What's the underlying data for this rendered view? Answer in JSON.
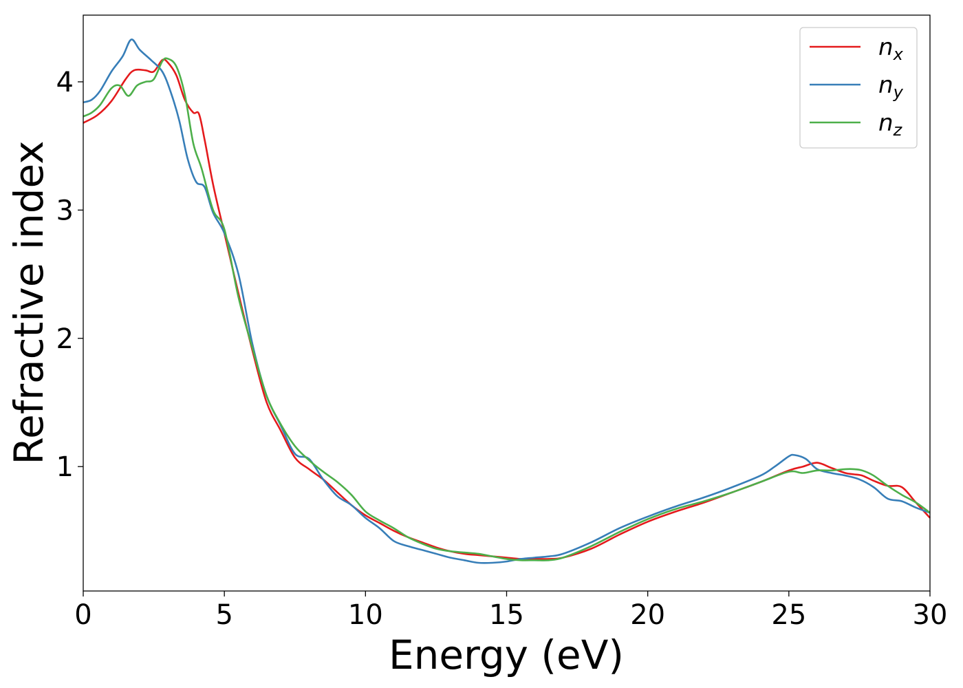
{
  "chart_data": {
    "type": "line",
    "xlabel": "Energy (eV)",
    "ylabel": "Refractive index",
    "xlim": [
      0,
      30
    ],
    "ylim": [
      0.03,
      4.52
    ],
    "xticks": [
      0,
      5,
      10,
      15,
      20,
      25,
      30
    ],
    "xtick_labels": [
      "0",
      "5",
      "10",
      "15",
      "20",
      "25",
      "30"
    ],
    "yticks": [
      1,
      2,
      3,
      4
    ],
    "ytick_labels": [
      "1",
      "2",
      "3",
      "4"
    ],
    "grid": false,
    "legend_position": "top-right",
    "series": [
      {
        "name": "n",
        "subscript": "x",
        "color": "#e41a1c",
        "x": [
          0,
          0.5,
          1,
          1.5,
          1.8,
          2.2,
          2.5,
          2.8,
          3.0,
          3.3,
          3.6,
          3.9,
          4.1,
          4.3,
          4.6,
          5,
          5.5,
          6,
          6.5,
          7,
          7.5,
          8,
          8.5,
          9,
          9.5,
          10,
          10.5,
          11,
          11.5,
          12,
          12.5,
          13,
          13.5,
          14,
          14.5,
          15,
          15.5,
          16,
          16.5,
          17,
          18,
          19,
          20,
          21,
          22,
          23,
          24,
          25,
          25.5,
          26,
          26.5,
          27,
          27.3,
          27.6,
          28,
          28.5,
          29,
          29.5,
          30
        ],
        "values": [
          3.68,
          3.74,
          3.85,
          4.02,
          4.09,
          4.09,
          4.08,
          4.17,
          4.15,
          4.05,
          3.86,
          3.76,
          3.75,
          3.55,
          3.2,
          2.82,
          2.35,
          1.9,
          1.5,
          1.28,
          1.07,
          0.98,
          0.9,
          0.8,
          0.7,
          0.62,
          0.56,
          0.5,
          0.45,
          0.41,
          0.37,
          0.34,
          0.32,
          0.31,
          0.3,
          0.29,
          0.28,
          0.28,
          0.28,
          0.29,
          0.36,
          0.47,
          0.57,
          0.65,
          0.72,
          0.8,
          0.88,
          0.97,
          1.0,
          1.03,
          0.99,
          0.95,
          0.94,
          0.93,
          0.89,
          0.85,
          0.84,
          0.72,
          0.6
        ]
      },
      {
        "name": "n",
        "subscript": "y",
        "color": "#377eb8",
        "x": [
          0,
          0.3,
          0.6,
          1,
          1.4,
          1.7,
          2.0,
          2.4,
          2.8,
          3.1,
          3.4,
          3.7,
          4.0,
          4.3,
          4.6,
          5,
          5.5,
          6,
          6.5,
          7,
          7.5,
          8,
          8.5,
          9,
          9.5,
          10,
          10.5,
          11,
          11.5,
          12,
          12.5,
          13,
          13.5,
          14,
          14.5,
          15,
          15.5,
          16,
          16.5,
          17,
          18,
          19,
          20,
          21,
          22,
          23,
          24,
          24.5,
          25,
          25.2,
          25.6,
          26,
          26.5,
          27,
          27.5,
          28,
          28.5,
          29,
          29.5,
          30
        ],
        "values": [
          3.84,
          3.86,
          3.93,
          4.08,
          4.2,
          4.33,
          4.25,
          4.17,
          4.08,
          3.92,
          3.7,
          3.4,
          3.22,
          3.18,
          2.98,
          2.82,
          2.5,
          1.95,
          1.55,
          1.32,
          1.1,
          1.06,
          0.9,
          0.77,
          0.7,
          0.6,
          0.52,
          0.42,
          0.38,
          0.35,
          0.32,
          0.29,
          0.27,
          0.25,
          0.25,
          0.26,
          0.28,
          0.29,
          0.3,
          0.32,
          0.41,
          0.52,
          0.61,
          0.69,
          0.76,
          0.84,
          0.93,
          1.0,
          1.08,
          1.09,
          1.06,
          0.98,
          0.95,
          0.93,
          0.9,
          0.84,
          0.75,
          0.73,
          0.68,
          0.64
        ]
      },
      {
        "name": "n",
        "subscript": "z",
        "color": "#4daf4a",
        "x": [
          0,
          0.3,
          0.6,
          1,
          1.3,
          1.6,
          1.9,
          2.2,
          2.5,
          2.8,
          3.0,
          3.3,
          3.6,
          3.9,
          4.2,
          4.6,
          5,
          5.5,
          6,
          6.5,
          7,
          7.5,
          8,
          8.5,
          9,
          9.5,
          10,
          10.5,
          11,
          11.5,
          12,
          12.5,
          13,
          13.5,
          14,
          14.5,
          15,
          15.5,
          16,
          16.5,
          17,
          18,
          19,
          20,
          21,
          22,
          23,
          24,
          25,
          25.5,
          26,
          26.5,
          27,
          27.3,
          27.6,
          28,
          28.5,
          29,
          29.5,
          30
        ],
        "values": [
          3.73,
          3.76,
          3.82,
          3.95,
          3.97,
          3.89,
          3.97,
          4.0,
          4.02,
          4.16,
          4.18,
          4.12,
          3.9,
          3.52,
          3.32,
          3.0,
          2.85,
          2.32,
          1.92,
          1.55,
          1.33,
          1.16,
          1.05,
          0.96,
          0.88,
          0.78,
          0.65,
          0.58,
          0.52,
          0.45,
          0.4,
          0.36,
          0.34,
          0.33,
          0.32,
          0.3,
          0.28,
          0.27,
          0.27,
          0.27,
          0.29,
          0.38,
          0.49,
          0.59,
          0.67,
          0.73,
          0.8,
          0.88,
          0.96,
          0.95,
          0.97,
          0.97,
          0.98,
          0.98,
          0.97,
          0.93,
          0.85,
          0.78,
          0.72,
          0.64
        ]
      }
    ]
  }
}
